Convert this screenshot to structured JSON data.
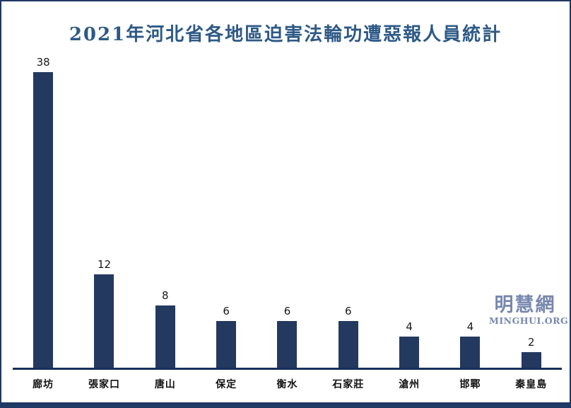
{
  "title": {
    "text": "2021年河北省各地區迫害法輪功遭惡報人員統計",
    "color": "#2d5986"
  },
  "watermark": {
    "cjk": "明慧網",
    "latin": "MINGHUI.ORG",
    "color": "#7787ae"
  },
  "colors": {
    "bar": "#24395f",
    "axis": "#16305c",
    "frame": "#1f3864",
    "footer_strip": "#1f3864",
    "value_label": "#1a1a1a",
    "category_label": "#111111"
  },
  "chart_data": {
    "type": "bar",
    "title": "2021年河北省各地區迫害法輪功遭惡報人員統計",
    "categories": [
      "廊坊",
      "張家口",
      "唐山",
      "保定",
      "衡水",
      "石家莊",
      "滄州",
      "邯鄲",
      "秦皇島"
    ],
    "values": [
      38,
      12,
      8,
      6,
      6,
      6,
      4,
      4,
      2
    ],
    "xlabel": "",
    "ylabel": "",
    "ylim": [
      0,
      40
    ],
    "grid": false,
    "legend": false,
    "data_labels": true,
    "bar_color": "#24395f",
    "axis_color": "#16305c"
  }
}
